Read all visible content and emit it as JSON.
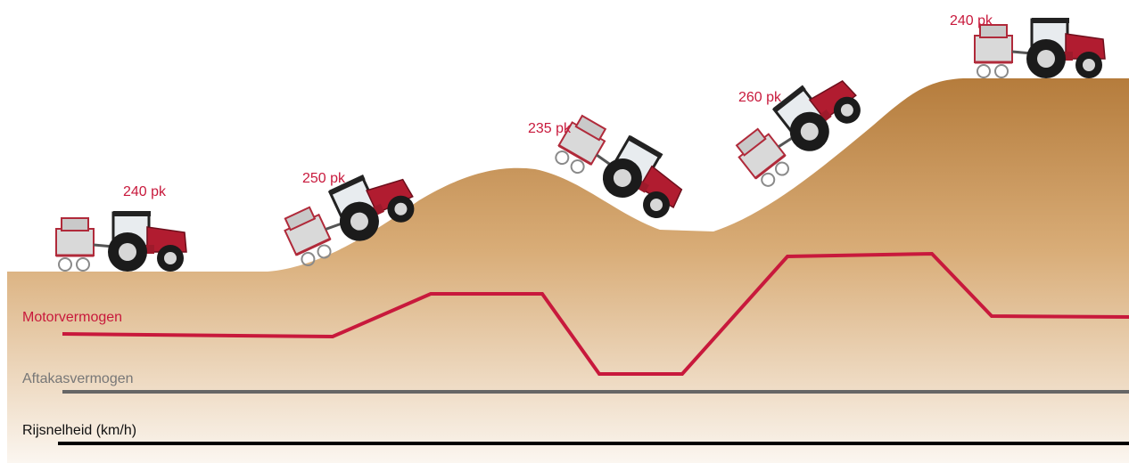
{
  "power_labels": [
    "240 pk",
    "250 pk",
    "235 pk",
    "260 pk",
    "240 pk"
  ],
  "legend": {
    "engine": "Motorvermogen",
    "pto": "Aftakasvermogen",
    "speed": "Rijsnelheid (km/h)"
  }
}
